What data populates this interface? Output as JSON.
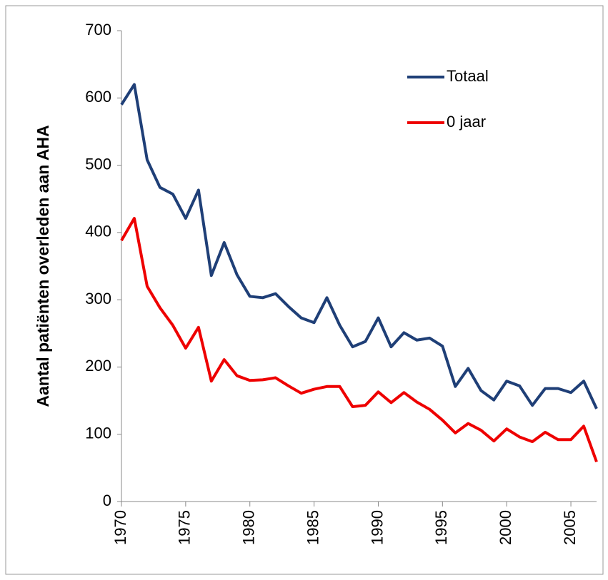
{
  "chart_data": {
    "type": "line",
    "y_label": "Aantal patiënten overleden aan AHA",
    "x": [
      1970,
      1971,
      1972,
      1973,
      1974,
      1975,
      1976,
      1977,
      1978,
      1979,
      1980,
      1981,
      1982,
      1983,
      1984,
      1985,
      1986,
      1987,
      1988,
      1989,
      1990,
      1991,
      1992,
      1993,
      1994,
      1995,
      1996,
      1997,
      1998,
      1999,
      2000,
      2001,
      2002,
      2003,
      2004,
      2005,
      2006,
      2007
    ],
    "series": [
      {
        "name": "Totaal",
        "color": "#1f3f77",
        "values": [
          590,
          620,
          508,
          467,
          457,
          421,
          463,
          336,
          385,
          337,
          305,
          303,
          309,
          290,
          273,
          266,
          303,
          262,
          230,
          238,
          273,
          230,
          251,
          240,
          243,
          231,
          171,
          198,
          165,
          151,
          179,
          172,
          143,
          168,
          168,
          162,
          179,
          138
        ]
      },
      {
        "name": "0 jaar",
        "color": "#ee0000",
        "values": [
          388,
          421,
          320,
          288,
          262,
          228,
          259,
          179,
          211,
          187,
          180,
          181,
          184,
          172,
          161,
          167,
          171,
          171,
          141,
          143,
          163,
          147,
          162,
          148,
          137,
          121,
          102,
          116,
          106,
          90,
          108,
          96,
          89,
          103,
          92,
          92,
          112,
          59
        ]
      }
    ],
    "xlim": [
      1970,
      2007
    ],
    "xticks": [
      1970,
      1975,
      1980,
      1985,
      1990,
      1995,
      2000,
      2005
    ],
    "ylim": [
      0,
      700
    ],
    "yticks": [
      0,
      100,
      200,
      300,
      400,
      500,
      600,
      700
    ],
    "grid": false,
    "legend": "top-right"
  }
}
